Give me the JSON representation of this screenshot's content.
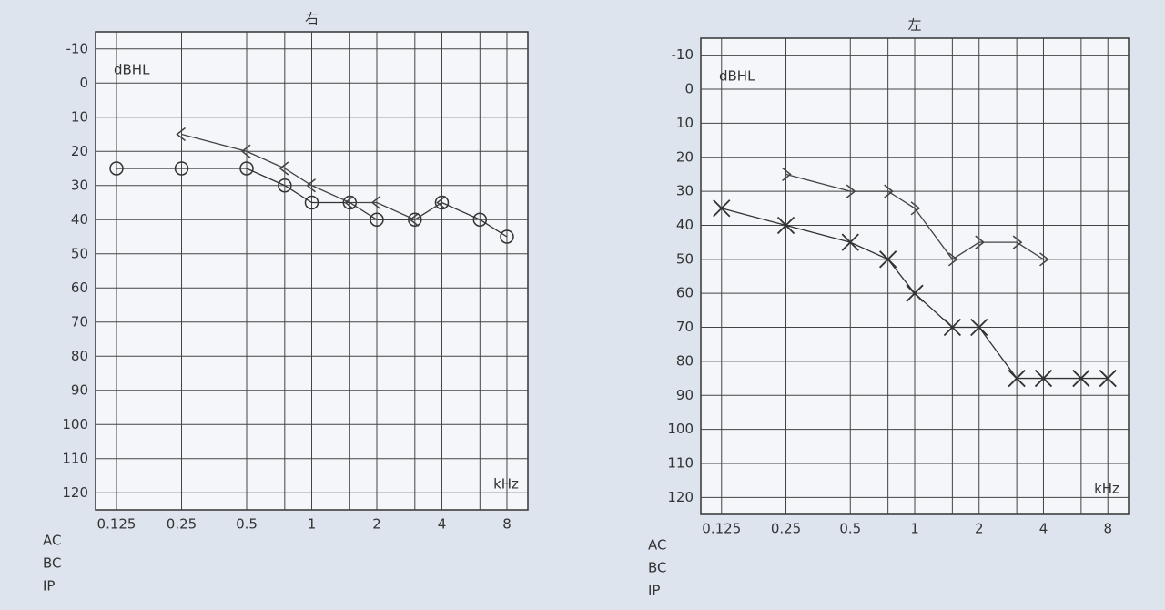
{
  "chart_data": [
    {
      "type": "line",
      "title": "右",
      "y_label": "dBHL",
      "x_label": "kHz",
      "x_scale": "log",
      "y_inverted": true,
      "grid": true,
      "xlim": [
        0.1,
        10
      ],
      "ylim": [
        -15,
        125
      ],
      "xticks": [
        0.125,
        0.25,
        0.5,
        1,
        2,
        4,
        8
      ],
      "minor_xticks": [
        0.75,
        1.5,
        3,
        6
      ],
      "yticks": [
        -10,
        0,
        10,
        20,
        30,
        40,
        50,
        60,
        70,
        80,
        90,
        100,
        110,
        120
      ],
      "bold_x": 1,
      "bold_y": 0,
      "series": [
        {
          "name": "AC",
          "color": "#333333",
          "marker": "circle",
          "x": [
            0.125,
            0.25,
            0.5,
            0.75,
            1,
            1.5,
            2,
            3,
            4,
            6,
            8
          ],
          "values": [
            25,
            25,
            25,
            30,
            35,
            35,
            40,
            40,
            35,
            40,
            45
          ]
        },
        {
          "name": "BC",
          "color": "#444444",
          "marker": "left-angle",
          "x": [
            0.25,
            0.5,
            0.75,
            1,
            1.5,
            2,
            3,
            4
          ],
          "values": [
            15,
            20,
            25,
            30,
            35,
            35,
            40,
            35
          ]
        }
      ],
      "annotations": [
        "IP"
      ]
    },
    {
      "type": "line",
      "title": "左",
      "y_label": "dBHL",
      "x_label": "kHz",
      "x_scale": "log",
      "y_inverted": true,
      "grid": true,
      "xlim": [
        0.1,
        10
      ],
      "ylim": [
        -15,
        125
      ],
      "xticks": [
        0.125,
        0.25,
        0.5,
        1,
        2,
        4,
        8
      ],
      "minor_xticks": [
        0.75,
        1.5,
        3,
        6
      ],
      "yticks": [
        -10,
        0,
        10,
        20,
        30,
        40,
        50,
        60,
        70,
        80,
        90,
        100,
        110,
        120
      ],
      "bold_x": 1,
      "bold_y": 0,
      "series": [
        {
          "name": "AC",
          "color": "#333333",
          "marker": "cross",
          "x": [
            0.125,
            0.25,
            0.5,
            0.75,
            1,
            1.5,
            2,
            3,
            4,
            6,
            8
          ],
          "values": [
            35,
            40,
            45,
            50,
            60,
            70,
            70,
            85,
            85,
            85,
            85
          ]
        },
        {
          "name": "BC",
          "color": "#444444",
          "marker": "right-angle",
          "x": [
            0.25,
            0.5,
            0.75,
            1,
            1.5,
            2,
            3,
            4
          ],
          "values": [
            25,
            30,
            30,
            35,
            50,
            45,
            45,
            50
          ]
        }
      ],
      "annotations": [
        "IP"
      ]
    }
  ]
}
